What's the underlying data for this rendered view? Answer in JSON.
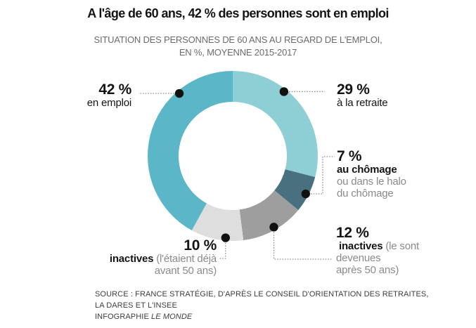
{
  "header": {
    "title": "A l'âge de 60 ans, 42 % des personnes sont en emploi",
    "subtitle_line1": "SITUATION DES PERSONNES DE 60 ANS AU REGARD DE L'EMPLOI,",
    "subtitle_line2": "EN %, MOYENNE 2015-2017"
  },
  "chart_data": {
    "type": "pie",
    "subtype": "donut",
    "title": "A l'âge de 60 ans, 42 % des personnes sont en emploi",
    "subtitle": "SITUATION DES PERSONNES DE 60 ANS AU REGARD DE L'EMPLOI, EN %, MOYENNE 2015-2017",
    "unit": "%",
    "start_angle_deg": 0,
    "direction": "clockwise",
    "donut_hole_ratio": 0.64,
    "dot_color": "#111111",
    "leader_line_color": "#8f8f8f",
    "segments": [
      {
        "id": "retraite",
        "label": "à la retraite",
        "value": 29,
        "color": "#8ecfd5",
        "callout_angle_deg": 38.5
      },
      {
        "id": "chomage",
        "label": "au chômage ou dans le halo du chômage",
        "value": 7,
        "color": "#48707e",
        "callout_angle_deg": 117.5
      },
      {
        "id": "inactives-apres",
        "label": "inactives (le sont devenues après 50 ans)",
        "value": 12,
        "color": "#9e9e9e",
        "callout_angle_deg": 150
      },
      {
        "id": "inactives-avant",
        "label": "inactives (l'étaient déjà avant 50 ans)",
        "value": 10,
        "color": "#dedede",
        "callout_angle_deg": 185
      },
      {
        "id": "emploi",
        "label": "en emploi",
        "value": 42,
        "color": "#5bb6c8",
        "callout_angle_deg": 319.5
      }
    ]
  },
  "callouts": {
    "emploi": {
      "pct": "42 %",
      "line1": "en emploi"
    },
    "retraite": {
      "pct": "29 %",
      "line1": "à la retraite"
    },
    "chomage": {
      "pct": "7 %",
      "bold1": "au chômage",
      "gray1": "ou dans le halo",
      "gray2": "du chômage"
    },
    "inactives_apres": {
      "pct": "12 %",
      "bold": "inactives",
      "gray1": "(le sont",
      "gray2": "devenues",
      "gray3": "après 50 ans)"
    },
    "inactives_avant": {
      "pct": "10 %",
      "bold": "inactives",
      "gray1": "(l'étaient déjà",
      "gray2": "avant 50 ans)"
    }
  },
  "footer": {
    "source_line1": "SOURCE : FRANCE STRATÉGIE, D'APRÈS LE CONSEIL D'ORIENTATION DES RETRAITES,",
    "source_line2": "LA DARES ET L'INSEE",
    "credit_prefix": "INFOGRAPHIE ",
    "credit_name": "LE MONDE"
  }
}
